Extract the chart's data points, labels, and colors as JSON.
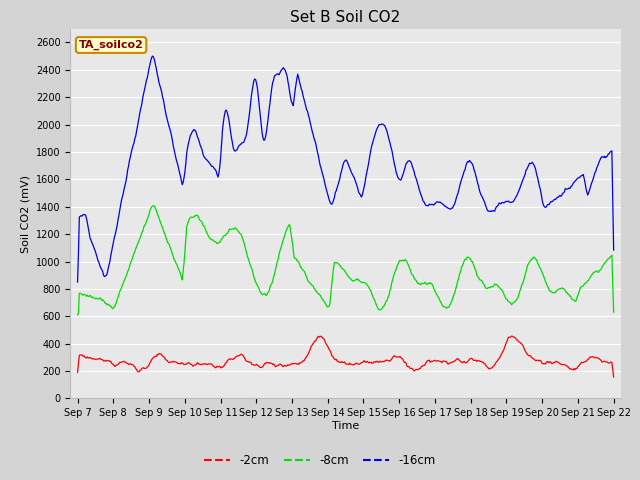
{
  "title": "Set B Soil CO2",
  "ylabel": "Soil CO2 (mV)",
  "xlabel": "Time",
  "legend_label": "TA_soilco2",
  "ylim": [
    0,
    2700
  ],
  "yticks": [
    0,
    200,
    400,
    600,
    800,
    1000,
    1200,
    1400,
    1600,
    1800,
    2000,
    2200,
    2400,
    2600
  ],
  "xtick_labels": [
    "Sep 7",
    "Sep 8",
    "Sep 9",
    "Sep 10",
    "Sep 11",
    "Sep 12",
    "Sep 13",
    "Sep 14",
    "Sep 15",
    "Sep 16",
    "Sep 17",
    "Sep 18",
    "Sep 19",
    "Sep 20",
    "Sep 21",
    "Sep 22"
  ],
  "line_colors": {
    "red": "#ff0000",
    "green": "#00dd00",
    "blue": "#0000ee"
  },
  "legend_entries": [
    "-2cm",
    "-8cm",
    "-16cm"
  ],
  "fig_bg": "#d4d4d4",
  "plot_bg": "#e8e8e8",
  "grid_color": "#ffffff",
  "legend_box_facecolor": "#ffffcc",
  "legend_box_edgecolor": "#cc8800",
  "legend_text_color": "#880000",
  "title_fontsize": 11,
  "axis_label_fontsize": 8,
  "tick_fontsize": 7
}
